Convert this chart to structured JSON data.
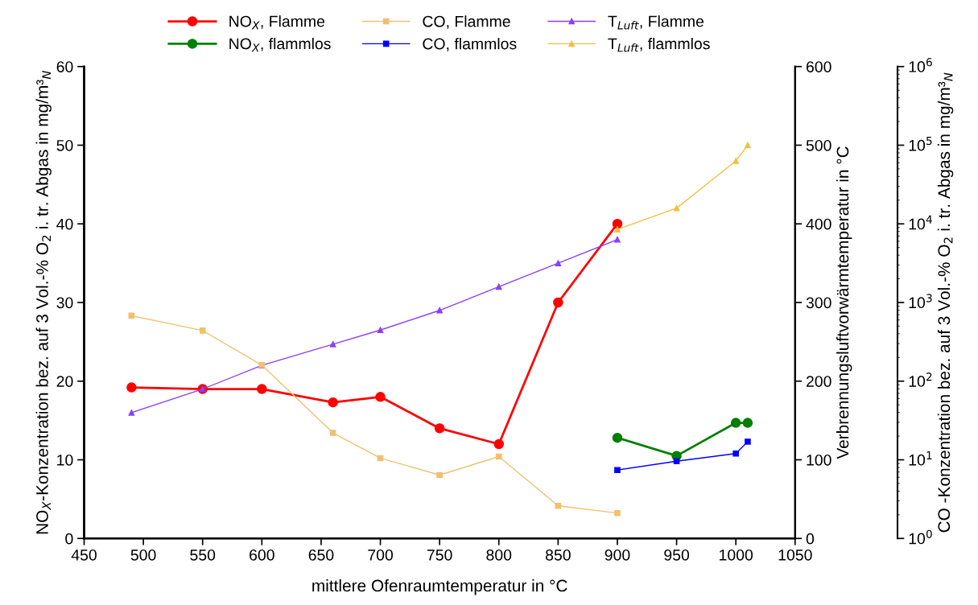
{
  "chart_data": {
    "type": "line",
    "xlabel": "mittlere Ofenraumtemperatur in °C",
    "ylabel": "NO$_{X}$-Konzentration bez. auf 3 Vol.-% O$_{2}$ i. tr. Abgas in mg/m³$_{N}$",
    "y2label": "Verbrennungsluftvorwärmtemperatur in °C",
    "y3label": "CO -Konzentration bez. auf 3 Vol.-% O$_{2}$ i. tr. Abgas in mg/m³$_{N}$",
    "xlim": [
      450,
      1050
    ],
    "xticks": [
      450,
      500,
      550,
      600,
      650,
      700,
      750,
      800,
      850,
      900,
      950,
      1000,
      1050
    ],
    "ylim": [
      0,
      60
    ],
    "yticks": [
      0,
      10,
      20,
      30,
      40,
      50,
      60
    ],
    "y2lim": [
      0,
      600
    ],
    "y2ticks": [
      0,
      100,
      200,
      300,
      400,
      500,
      600
    ],
    "y3lim": [
      1,
      1000000
    ],
    "y3ticks": [
      {
        "value": 1,
        "label": "10$^{0}$"
      },
      {
        "value": 10,
        "label": "10$^{1}$"
      },
      {
        "value": 100,
        "label": "10$^{2}$"
      },
      {
        "value": 1000,
        "label": "10$^{3}$"
      },
      {
        "value": 10000,
        "label": "10$^{4}$"
      },
      {
        "value": 100000,
        "label": "10$^{5}$"
      },
      {
        "value": 1000000,
        "label": "10$^{6}$"
      }
    ],
    "log": "y3",
    "grid": false,
    "legend": "top",
    "series": [
      {
        "name": "NO$_{X}$, Flamme",
        "color": "#ff0000",
        "marker": "circle",
        "x": [
          490,
          550,
          600,
          660,
          700,
          750,
          800,
          850,
          900
        ],
        "values": [
          19.2,
          19.0,
          19.0,
          17.3,
          18.0,
          14.0,
          12.0,
          30.0,
          40.0
        ]
      },
      {
        "name": "NO$_{X}$, flammlos",
        "color": "#008000",
        "marker": "circle",
        "x": [
          900,
          950,
          1000,
          1010
        ],
        "values": [
          12.8,
          10.5,
          14.7,
          14.7
        ]
      },
      {
        "name": "CO, Flamme",
        "color": "#f0c070",
        "marker": "square",
        "axis": "y3",
        "x": [
          490,
          550,
          600,
          660,
          700,
          750,
          800,
          850,
          900
        ],
        "values": [
          680,
          440,
          160,
          22,
          10.5,
          6.4,
          11,
          2.6,
          2.1
        ]
      },
      {
        "name": "CO, flammlos",
        "color": "#0000ff",
        "marker": "square",
        "axis": "y3",
        "x": [
          900,
          950,
          1000,
          1010
        ],
        "values": [
          7.4,
          9.6,
          12,
          17
        ]
      },
      {
        "name": "T$_{Luft}$, Flamme",
        "color": "#8a3ffc",
        "marker": "triangle",
        "axis": "y2",
        "x": [
          490,
          550,
          600,
          660,
          700,
          750,
          800,
          850,
          900
        ],
        "values": [
          160,
          190,
          220,
          247,
          265,
          290,
          320,
          350,
          380
        ]
      },
      {
        "name": "T$_{Luft}$, flammlos",
        "color": "#f0c040",
        "marker": "triangle",
        "axis": "y2",
        "x": [
          900,
          950,
          1000,
          1010
        ],
        "values": [
          393,
          420,
          480,
          500
        ]
      }
    ]
  }
}
